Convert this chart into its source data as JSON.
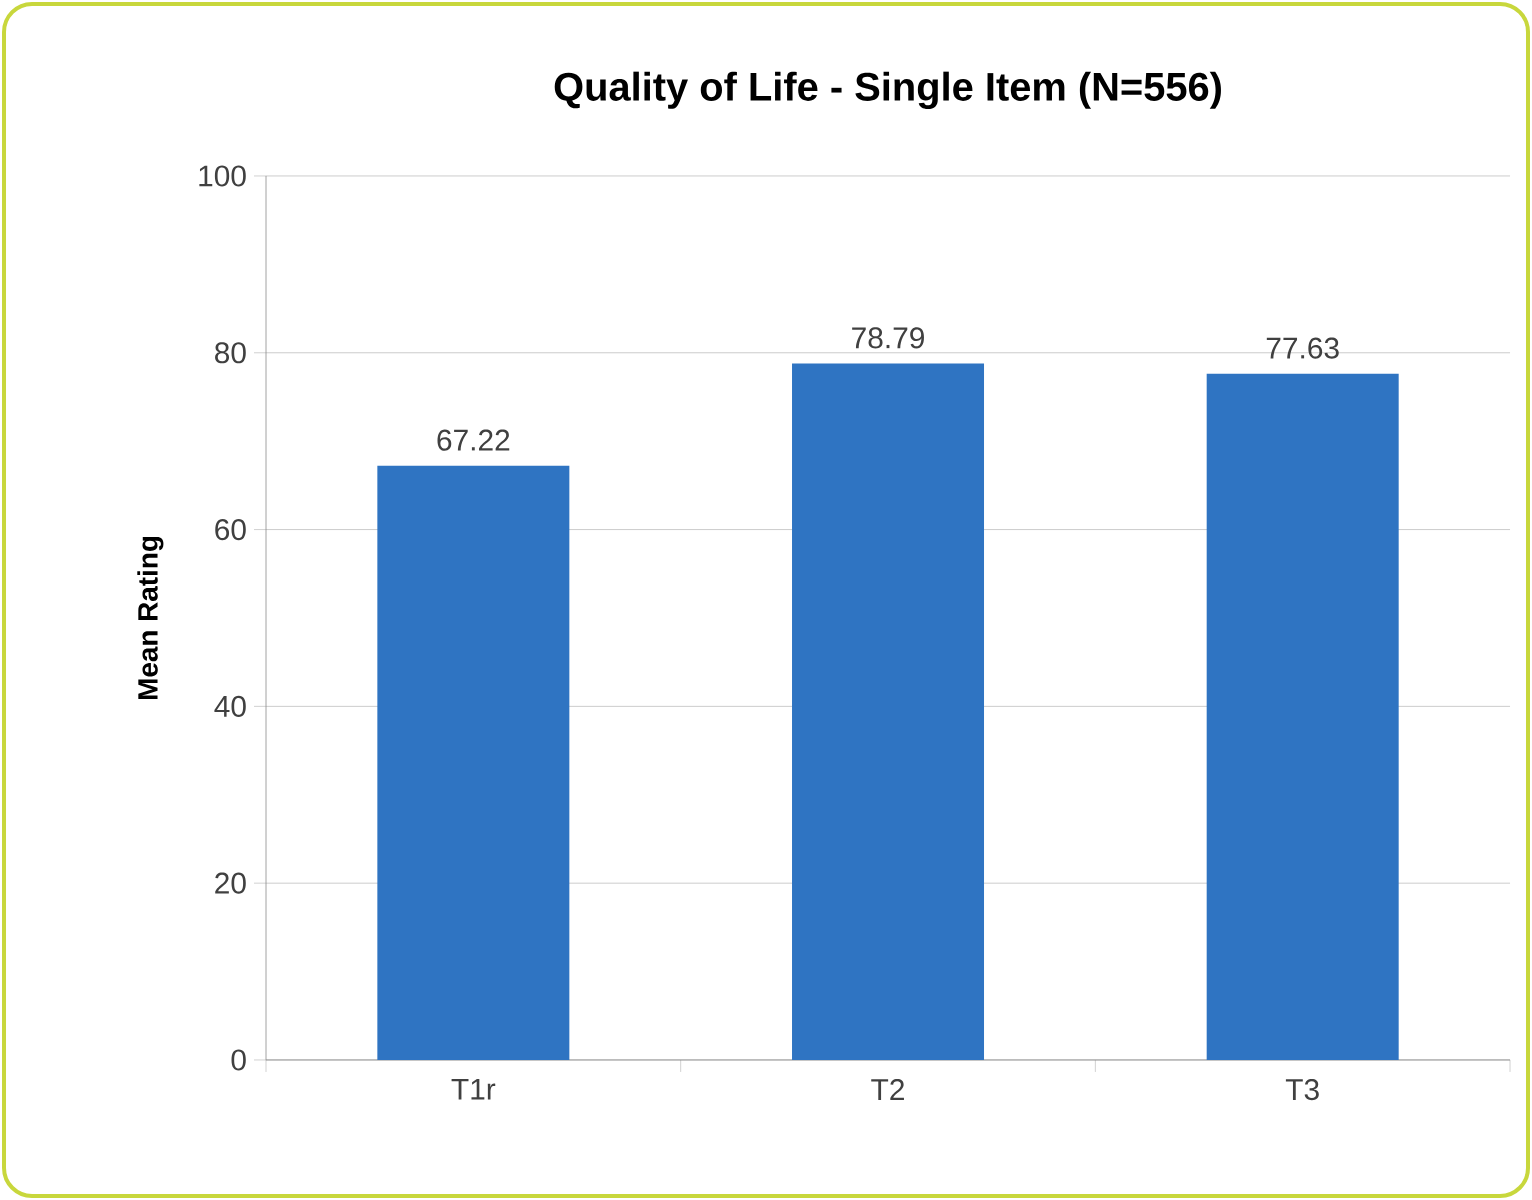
{
  "chart_data": {
    "type": "bar",
    "title": "Quality of Life - Single Item (N=556)",
    "ylabel": "Mean Rating",
    "categories": [
      "T1r",
      "T2",
      "T3"
    ],
    "values": [
      67.22,
      78.79,
      77.63
    ],
    "color": "#2f74c2",
    "ylim": [
      0,
      100
    ],
    "yticks": [
      0,
      20,
      40,
      60,
      80,
      100
    ],
    "grid": "y",
    "data_labels": true
  }
}
